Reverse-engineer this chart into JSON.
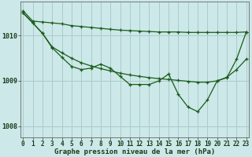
{
  "background_color": "#cce8e8",
  "grid_color": "#aacccc",
  "line_color": "#1a5c1a",
  "line1_x": [
    0,
    1,
    2,
    3,
    4,
    5,
    6,
    7,
    8,
    9,
    10,
    11,
    12,
    13,
    14,
    15,
    16,
    17,
    18,
    19,
    20,
    21,
    22,
    23
  ],
  "line1_y": [
    1010.55,
    1010.32,
    1010.3,
    1010.28,
    1010.26,
    1010.22,
    1010.2,
    1010.18,
    1010.16,
    1010.14,
    1010.12,
    1010.11,
    1010.1,
    1010.09,
    1010.08,
    1010.08,
    1010.08,
    1010.07,
    1010.07,
    1010.07,
    1010.07,
    1010.07,
    1010.07,
    1010.08
  ],
  "line2_x": [
    0,
    1,
    2,
    3,
    4,
    5,
    6,
    7,
    8,
    9,
    10,
    11,
    12,
    13,
    14,
    15,
    16,
    17,
    18,
    19,
    20,
    21,
    22,
    23
  ],
  "line2_y": [
    1010.5,
    1010.28,
    1010.05,
    1009.75,
    1009.62,
    1009.5,
    1009.4,
    1009.33,
    1009.27,
    1009.22,
    1009.17,
    1009.13,
    1009.1,
    1009.07,
    1009.05,
    1009.03,
    1009.01,
    1008.99,
    1008.97,
    1008.97,
    1009.0,
    1009.08,
    1009.25,
    1009.48
  ],
  "line3_x": [
    0,
    1,
    2,
    3,
    4,
    5,
    6,
    7,
    8,
    9,
    10,
    11,
    12,
    13,
    14,
    15,
    16,
    17,
    18,
    19,
    20,
    21,
    22,
    23
  ],
  "line3_y": [
    1010.5,
    1010.28,
    1010.05,
    1009.73,
    1009.52,
    1009.32,
    1009.25,
    1009.28,
    1009.37,
    1009.28,
    1009.1,
    1008.92,
    1008.92,
    1008.92,
    1009.0,
    1009.15,
    1008.7,
    1008.42,
    1008.32,
    1008.58,
    1009.0,
    1009.07,
    1009.48,
    1010.08
  ],
  "yticks": [
    1008,
    1009,
    1010
  ],
  "xticks": [
    0,
    1,
    2,
    3,
    4,
    5,
    6,
    7,
    8,
    9,
    10,
    11,
    12,
    13,
    14,
    15,
    16,
    17,
    18,
    19,
    20,
    21,
    22,
    23
  ],
  "xlim": [
    -0.3,
    23.3
  ],
  "ylim": [
    1007.75,
    1010.75
  ],
  "xlabel": "Graphe pression niveau de la mer (hPa)",
  "tick_fontsize": 5.5,
  "label_fontsize": 6.5
}
